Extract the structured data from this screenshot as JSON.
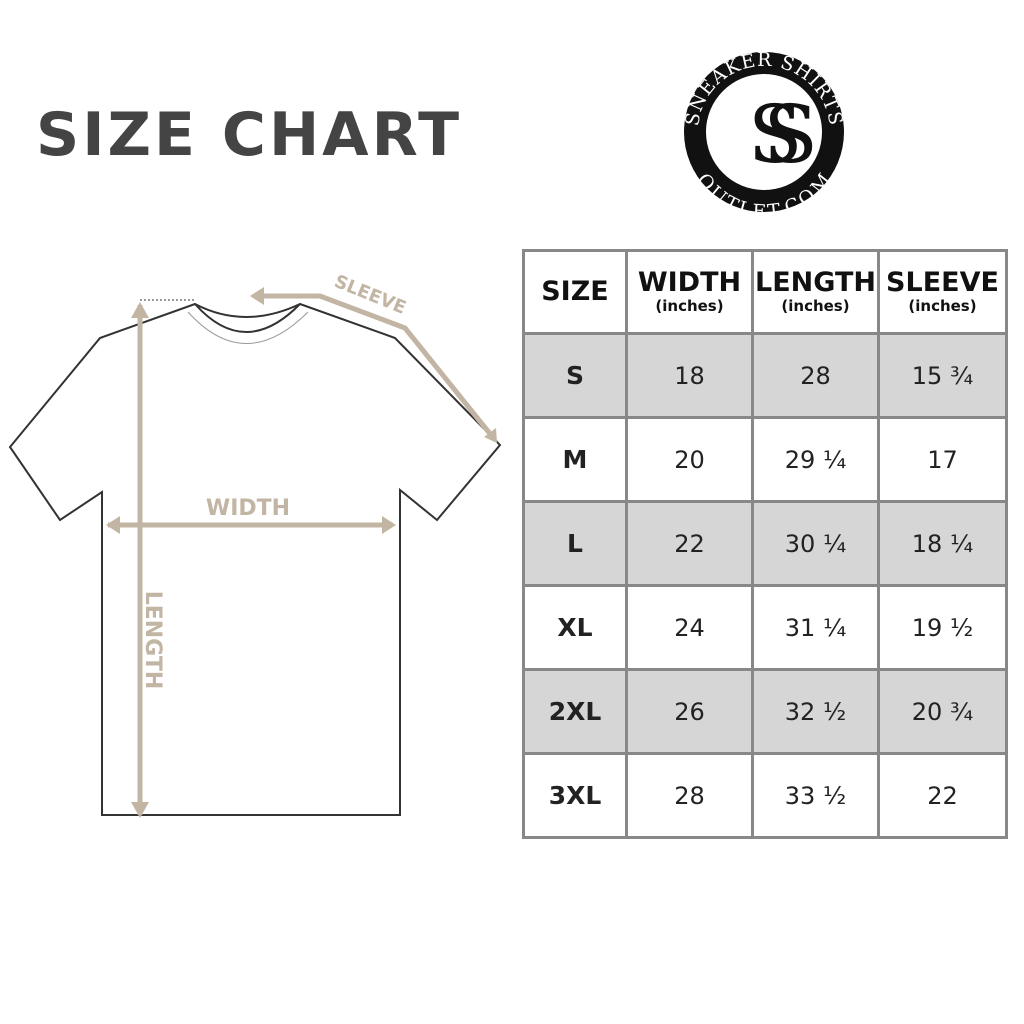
{
  "title": "SIZE CHART",
  "logo": {
    "top_text": "SNEAKER SHIRTS",
    "bottom_text": "OUTLET.COM",
    "monogram": "SS"
  },
  "diagram": {
    "sleeve": "SLEEVE",
    "width": "WIDTH",
    "length": "LENGTH",
    "accent_color": "#c2b5a3"
  },
  "table": {
    "headers": [
      {
        "label": "SIZE",
        "unit": ""
      },
      {
        "label": "WIDTH",
        "unit": "(inches)"
      },
      {
        "label": "LENGTH",
        "unit": "(inches)"
      },
      {
        "label": "SLEEVE",
        "unit": "(inches)"
      }
    ],
    "rows": [
      [
        "S",
        "18",
        "28",
        "15 ¾"
      ],
      [
        "M",
        "20",
        "29 ¼",
        "17"
      ],
      [
        "L",
        "22",
        "30 ¼",
        "18 ¼"
      ],
      [
        "XL",
        "24",
        "31 ¼",
        "19 ½"
      ],
      [
        "2XL",
        "26",
        "32 ½",
        "20 ¾"
      ],
      [
        "3XL",
        "28",
        "33 ½",
        "22"
      ]
    ],
    "shade_color": "#d6d6d6"
  }
}
